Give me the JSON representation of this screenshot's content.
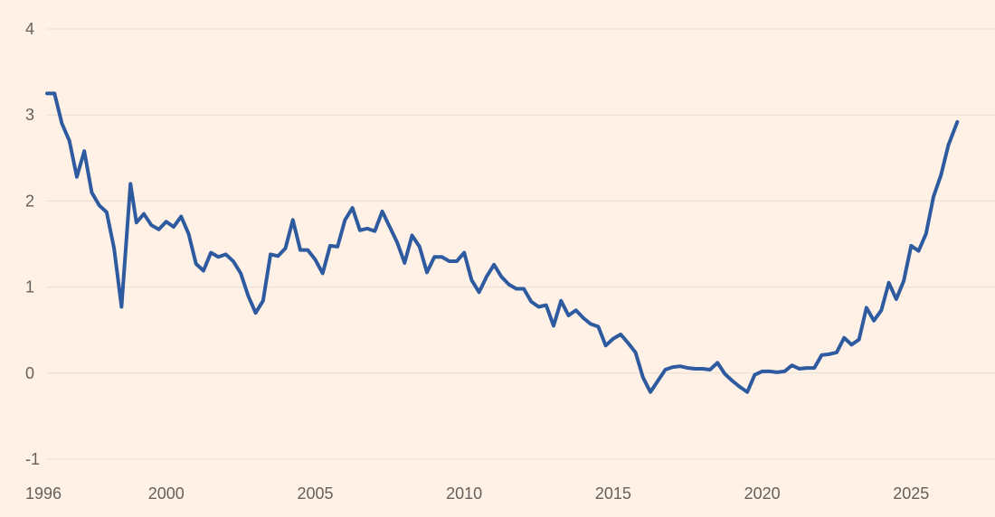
{
  "colors": {
    "background": "#FFF1E5",
    "line": "#2E5A9F",
    "grid": "#E9DED3",
    "tick_text": "#66605C"
  },
  "chart_data": {
    "type": "line",
    "title": "",
    "xlabel": "",
    "ylabel": "",
    "xlim": [
      1996,
      2026.6
    ],
    "ylim": [
      -1,
      4
    ],
    "grid": "horizontal",
    "legend": "none",
    "x_ticks": [
      1996,
      2000,
      2005,
      2010,
      2015,
      2020,
      2025
    ],
    "x_tick_labels": [
      "1996",
      "2000",
      "2005",
      "2010",
      "2015",
      "2020",
      "2025"
    ],
    "y_ticks": [
      4,
      3,
      2,
      1,
      0,
      -1
    ],
    "y_tick_labels": [
      "4",
      "3",
      "2",
      "1",
      "0",
      "-1"
    ],
    "series": [
      {
        "values_xy": [
          [
            1996.0,
            3.25
          ],
          [
            1996.25,
            3.25
          ],
          [
            1996.5,
            2.9
          ],
          [
            1996.75,
            2.7
          ],
          [
            1997.0,
            2.28
          ],
          [
            1997.25,
            2.58
          ],
          [
            1997.5,
            2.1
          ],
          [
            1997.75,
            1.95
          ],
          [
            1998.0,
            1.87
          ],
          [
            1998.25,
            1.45
          ],
          [
            1998.5,
            0.77
          ],
          [
            1998.8,
            2.2
          ],
          [
            1999.0,
            1.75
          ],
          [
            1999.25,
            1.85
          ],
          [
            1999.5,
            1.72
          ],
          [
            1999.75,
            1.67
          ],
          [
            2000.0,
            1.76
          ],
          [
            2000.25,
            1.7
          ],
          [
            2000.5,
            1.82
          ],
          [
            2000.75,
            1.62
          ],
          [
            2001.0,
            1.27
          ],
          [
            2001.25,
            1.19
          ],
          [
            2001.5,
            1.4
          ],
          [
            2001.75,
            1.35
          ],
          [
            2002.0,
            1.38
          ],
          [
            2002.25,
            1.3
          ],
          [
            2002.5,
            1.16
          ],
          [
            2002.75,
            0.9
          ],
          [
            2003.0,
            0.7
          ],
          [
            2003.25,
            0.84
          ],
          [
            2003.5,
            1.38
          ],
          [
            2003.75,
            1.36
          ],
          [
            2004.0,
            1.45
          ],
          [
            2004.25,
            1.78
          ],
          [
            2004.5,
            1.43
          ],
          [
            2004.75,
            1.43
          ],
          [
            2005.0,
            1.32
          ],
          [
            2005.25,
            1.16
          ],
          [
            2005.5,
            1.48
          ],
          [
            2005.75,
            1.47
          ],
          [
            2006.0,
            1.78
          ],
          [
            2006.25,
            1.92
          ],
          [
            2006.5,
            1.66
          ],
          [
            2006.75,
            1.68
          ],
          [
            2007.0,
            1.65
          ],
          [
            2007.25,
            1.88
          ],
          [
            2007.5,
            1.7
          ],
          [
            2007.75,
            1.52
          ],
          [
            2008.0,
            1.28
          ],
          [
            2008.25,
            1.6
          ],
          [
            2008.5,
            1.47
          ],
          [
            2008.75,
            1.17
          ],
          [
            2009.0,
            1.35
          ],
          [
            2009.25,
            1.35
          ],
          [
            2009.5,
            1.3
          ],
          [
            2009.75,
            1.3
          ],
          [
            2010.0,
            1.4
          ],
          [
            2010.25,
            1.08
          ],
          [
            2010.5,
            0.94
          ],
          [
            2010.75,
            1.12
          ],
          [
            2011.0,
            1.26
          ],
          [
            2011.25,
            1.12
          ],
          [
            2011.5,
            1.03
          ],
          [
            2011.75,
            0.98
          ],
          [
            2012.0,
            0.98
          ],
          [
            2012.25,
            0.83
          ],
          [
            2012.5,
            0.77
          ],
          [
            2012.75,
            0.79
          ],
          [
            2013.0,
            0.55
          ],
          [
            2013.25,
            0.84
          ],
          [
            2013.5,
            0.67
          ],
          [
            2013.75,
            0.73
          ],
          [
            2014.0,
            0.64
          ],
          [
            2014.25,
            0.57
          ],
          [
            2014.5,
            0.54
          ],
          [
            2014.75,
            0.32
          ],
          [
            2015.0,
            0.4
          ],
          [
            2015.25,
            0.45
          ],
          [
            2015.5,
            0.35
          ],
          [
            2015.75,
            0.24
          ],
          [
            2016.0,
            -0.05
          ],
          [
            2016.25,
            -0.22
          ],
          [
            2016.5,
            -0.09
          ],
          [
            2016.75,
            0.04
          ],
          [
            2017.0,
            0.07
          ],
          [
            2017.25,
            0.08
          ],
          [
            2017.5,
            0.06
          ],
          [
            2017.75,
            0.05
          ],
          [
            2018.0,
            0.05
          ],
          [
            2018.25,
            0.04
          ],
          [
            2018.5,
            0.12
          ],
          [
            2018.75,
            -0.01
          ],
          [
            2019.0,
            -0.09
          ],
          [
            2019.25,
            -0.16
          ],
          [
            2019.5,
            -0.22
          ],
          [
            2019.75,
            -0.02
          ],
          [
            2020.0,
            0.02
          ],
          [
            2020.25,
            0.02
          ],
          [
            2020.5,
            0.01
          ],
          [
            2020.75,
            0.02
          ],
          [
            2021.0,
            0.09
          ],
          [
            2021.25,
            0.05
          ],
          [
            2021.5,
            0.06
          ],
          [
            2021.75,
            0.06
          ],
          [
            2022.0,
            0.21
          ],
          [
            2022.25,
            0.22
          ],
          [
            2022.5,
            0.24
          ],
          [
            2022.75,
            0.41
          ],
          [
            2023.0,
            0.33
          ],
          [
            2023.25,
            0.39
          ],
          [
            2023.5,
            0.76
          ],
          [
            2023.75,
            0.61
          ],
          [
            2024.0,
            0.73
          ],
          [
            2024.25,
            1.05
          ],
          [
            2024.5,
            0.86
          ],
          [
            2024.75,
            1.07
          ],
          [
            2025.0,
            1.48
          ],
          [
            2025.25,
            1.42
          ],
          [
            2025.5,
            1.62
          ],
          [
            2025.75,
            2.05
          ],
          [
            2026.0,
            2.3
          ],
          [
            2026.25,
            2.65
          ],
          [
            2026.55,
            2.92
          ]
        ]
      }
    ]
  }
}
